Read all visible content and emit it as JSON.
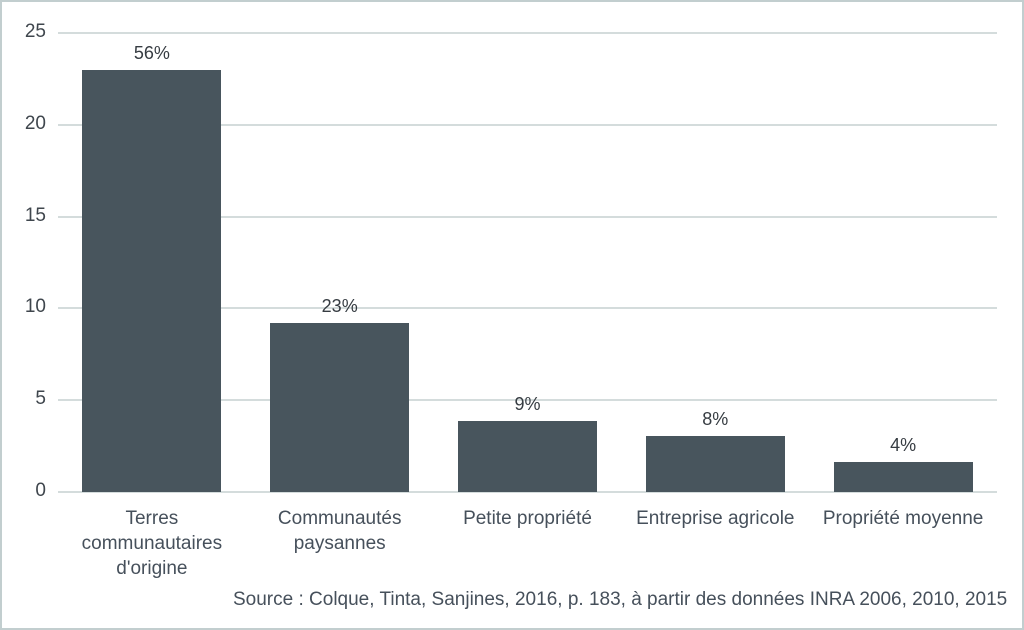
{
  "chart_data": {
    "type": "bar",
    "title": "",
    "xlabel": "",
    "ylabel": "",
    "categories": [
      "Terres communautaires d'origine",
      "Communautés paysannes",
      "Petite propriété",
      "Entreprise agricole",
      "Propriété moyenne"
    ],
    "values": [
      23.0,
      9.2,
      3.85,
      3.05,
      1.65
    ],
    "value_labels": [
      "56%",
      "23%",
      "9%",
      "8%",
      "4%"
    ],
    "ylim": [
      0,
      25
    ],
    "yticks": [
      0,
      5,
      10,
      15,
      20,
      25
    ],
    "grid": true,
    "legend": "none",
    "source": "Source : Colque, Tinta, Sanjines, 2016, p. 183, à partir des données INRA 2006, 2010, 2015",
    "colors": {
      "bar": "#48555d",
      "gridline": "#d4dcdc",
      "tick_label": "#3f464d",
      "value_label": "#363c42",
      "category_label": "#46505b",
      "frame_border": "#c2cecf",
      "background": "#ffffff"
    }
  }
}
